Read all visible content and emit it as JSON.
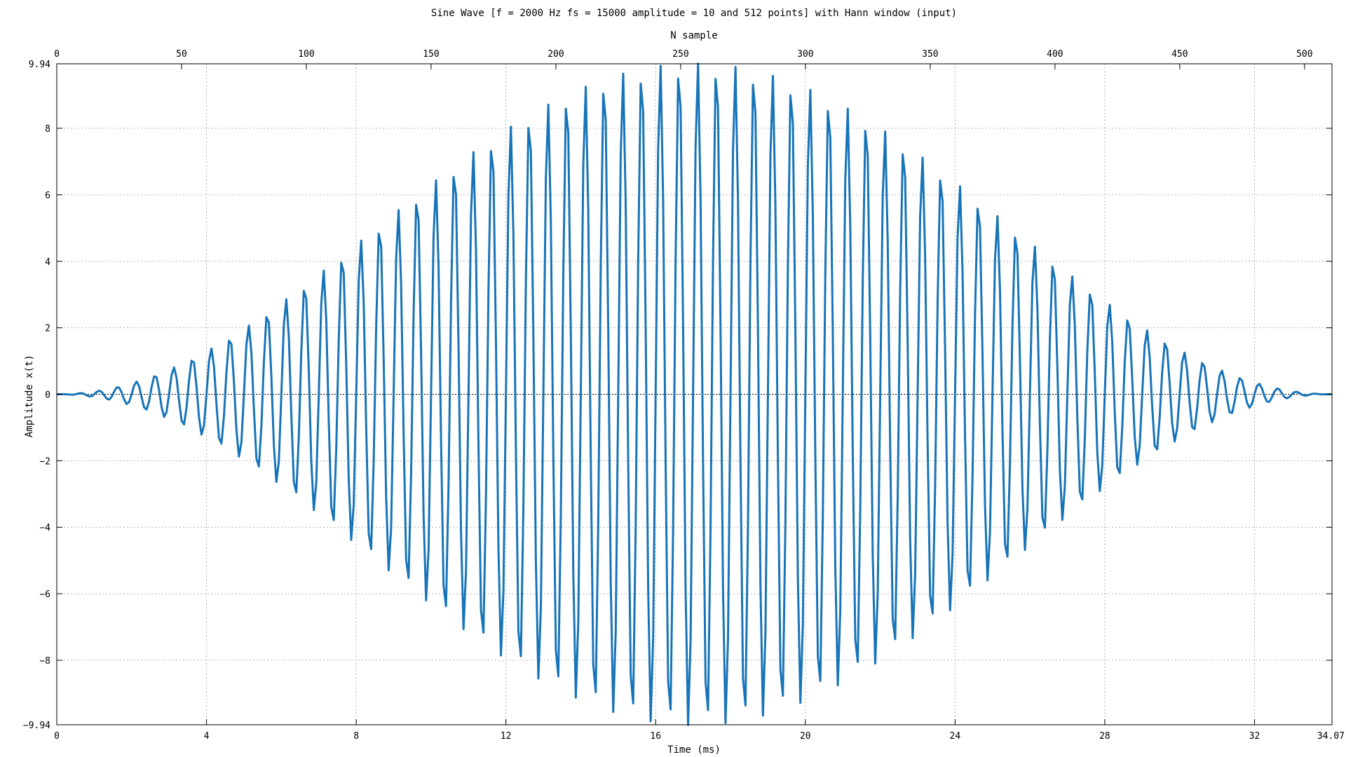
{
  "chart_data": {
    "type": "line",
    "title": "Sine Wave [f = 2000 Hz fs = 15000 amplitude = 10 and 512 points] with Hann window (input)",
    "xlabel": "Time (ms)",
    "ylabel": "Amplitude x(t)",
    "x2label": "N sample",
    "xlim": [
      0,
      34.07
    ],
    "ylim": [
      -9.94,
      9.94
    ],
    "x2lim": [
      0,
      511
    ],
    "xticks": [
      "0",
      "4",
      "8",
      "12",
      "16",
      "20",
      "24",
      "28",
      "32",
      "34.07"
    ],
    "yticks": [
      "-9.94",
      "-8",
      "-6",
      "-4",
      "-2",
      "0",
      "2",
      "4",
      "6",
      "8",
      "9.94"
    ],
    "x2ticks": [
      "0",
      "50",
      "100",
      "150",
      "200",
      "250",
      "300",
      "350",
      "400",
      "450",
      "500"
    ],
    "grid": true,
    "line_color": "#1874b8",
    "signal": {
      "frequency_hz": 2000,
      "sample_rate": 15000,
      "amplitude": 10,
      "n_points": 512,
      "window": "hann"
    }
  }
}
